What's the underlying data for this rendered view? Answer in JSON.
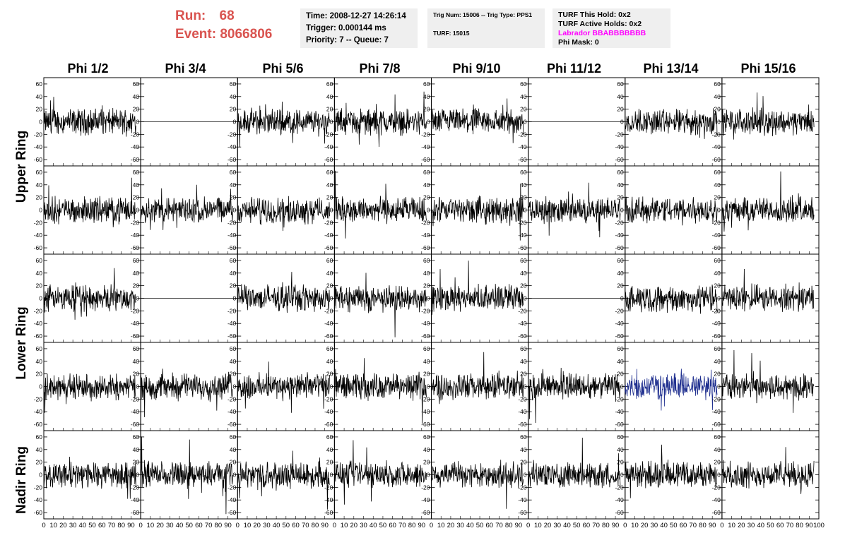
{
  "header": {
    "run_label": "Run:",
    "run_value": "68",
    "event_label": "Event:",
    "event_value": "8066806",
    "run_color": "#d9534f"
  },
  "info1": {
    "time": "Time: 2008-12-27 14:26:14",
    "trigger": "Trigger: 0.000144 ms",
    "priority": "Priority: 7 -- Queue: 7"
  },
  "info2": {
    "trig": "Trig Num: 15006 -- Trig Type: PPS1",
    "turf": "TURF: 15015"
  },
  "info3": {
    "this_hold": "TURF This Hold: 0x2",
    "active_holds": "TURF Active Holds: 0x2",
    "labrador": "Labrador BBABBBBBBB",
    "phi_mask": "Phi Mask: 0"
  },
  "columns": [
    "Phi 1/2",
    "Phi 3/4",
    "Phi 5/6",
    "Phi 7/8",
    "Phi 9/10",
    "Phi 11/12",
    "Phi 13/14",
    "Phi 15/16"
  ],
  "ring_labels": [
    "Upper Ring",
    "Lower Ring",
    "Nadir Ring"
  ],
  "chart_data": {
    "type": "line",
    "rows": 5,
    "cols": 8,
    "xlim": [
      0,
      100
    ],
    "ylim": [
      -70,
      70
    ],
    "ytick_labels": [
      "60",
      "40",
      "20",
      "0",
      "-20",
      "-40",
      "-60"
    ],
    "xtick_labels": [
      "0",
      "10",
      "20",
      "30",
      "40",
      "50",
      "60",
      "70",
      "80",
      "90",
      "100"
    ],
    "flat_panels": [
      [
        0,
        1
      ],
      [
        0,
        5
      ],
      [
        2,
        1
      ],
      [
        2,
        5
      ]
    ],
    "highlight_panel": [
      3,
      6
    ],
    "highlight_color": "#1f2f8f",
    "trace_color": "#000000",
    "approx_amplitude": 15
  }
}
